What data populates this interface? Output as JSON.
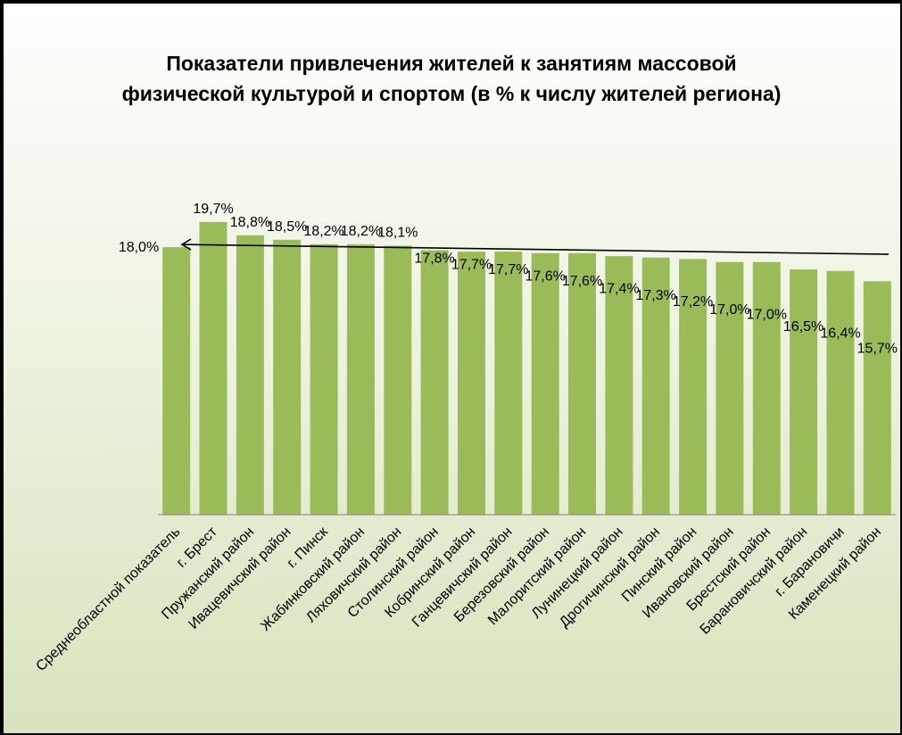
{
  "chart_data": {
    "type": "bar",
    "title_lines": [
      "Показатели привлечения жителей к занятиям  массовой",
      "физической культурой и спортом (в % к числу жителей региона)"
    ],
    "categories": [
      "Среднеобластной показатель",
      "г. Брест",
      "Пружанский район",
      "Ивацевичский район",
      "г. Пинск",
      "Жабинковский район",
      "Ляховичский район",
      "Столинский район",
      "Кобринский район",
      "Ганцевичский район",
      "Березовский район",
      "Малоритский район",
      "Лунинецкий район",
      "Дрогичинский район",
      "Пинский район",
      "Ивановский район",
      "Брестский район",
      "Барановичский район",
      "г. Барановичи",
      "Каменецкий район"
    ],
    "values": [
      18.0,
      19.7,
      18.8,
      18.5,
      18.2,
      18.2,
      18.1,
      17.8,
      17.7,
      17.7,
      17.6,
      17.6,
      17.4,
      17.3,
      17.2,
      17.0,
      17.0,
      16.5,
      16.4,
      15.7
    ],
    "labels": [
      "18,0%",
      "19,7%",
      "18,8%",
      "18,5%",
      "18,2%",
      "18,2%",
      "18,1%",
      "17,8%",
      "17,7%",
      "17,7%",
      "17,6%",
      "17,6%",
      "17,4%",
      "17,3%",
      "17,2%",
      "17,0%",
      "17,0%",
      "16,5%",
      "16,4%",
      "15,7%"
    ],
    "ylim": [
      0,
      20
    ],
    "grid": false,
    "legend": "none",
    "reference_arrow": "from right edge toward the average bar",
    "colors": {
      "background": "#c6d9a2",
      "bar": "#9bbb59",
      "border": "#000000",
      "text": "#000000"
    }
  }
}
